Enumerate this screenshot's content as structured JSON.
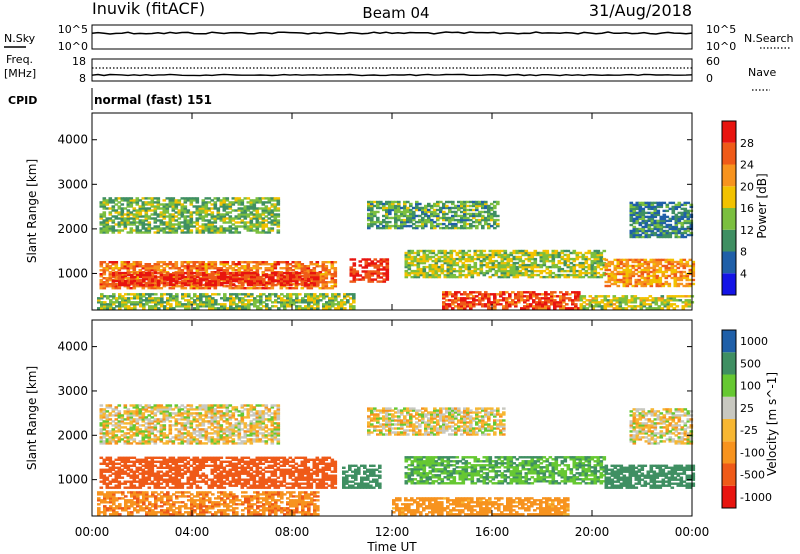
{
  "header": {
    "station": "Inuvik (fitACF)",
    "beam": "Beam 04",
    "date": "31/Aug/2018"
  },
  "top_panels": {
    "nsky_label": "N.Sky",
    "nsky_ticks": [
      "10^5",
      "10^0"
    ],
    "nsearch_label": "N.Search",
    "nsearch_ticks": [
      "10^5",
      "10^0"
    ],
    "freq_label_1": "Freq.",
    "freq_label_2": "[MHz]",
    "freq_ticks": [
      "18",
      "8"
    ],
    "nave_label": "Nave",
    "nave_ticks": [
      "60",
      "0"
    ],
    "cpid_label": "CPID",
    "cpid_text": "normal (fast) 151"
  },
  "colors": {
    "power_scale": [
      "#1414e6",
      "#1f5fa8",
      "#3f8f62",
      "#7bbf3f",
      "#f2c200",
      "#f7931e",
      "#ef5a18",
      "#e8140f"
    ],
    "velocity_scale": [
      "#e8140f",
      "#ef5a18",
      "#f7931e",
      "#f7b733",
      "#c8c8c0",
      "#66c832",
      "#3f8f62",
      "#1f5fa8"
    ]
  },
  "chart_data": [
    {
      "type": "heatmap",
      "name": "power",
      "ylabel": "Slant Range [km]",
      "yticks": [
        1000,
        2000,
        3000,
        4000
      ],
      "ylim": [
        180,
        4600
      ],
      "xlim_hours": [
        0,
        24
      ],
      "colorbar_label": "Power [dB]",
      "colorbar_ticks": [
        4,
        8,
        12,
        16,
        20,
        24,
        28
      ],
      "colorbar_range": [
        0,
        32
      ],
      "regions": [
        {
          "t": [
            0.3,
            9.7
          ],
          "r": [
            650,
            1250
          ],
          "v": 24
        },
        {
          "t": [
            0.8,
            9.0
          ],
          "r": [
            720,
            1000
          ],
          "v": 29
        },
        {
          "t": [
            0.3,
            7.5
          ],
          "r": [
            1900,
            2700
          ],
          "v": 13
        },
        {
          "t": [
            0.2,
            10.5
          ],
          "r": [
            200,
            550
          ],
          "v": 14
        },
        {
          "t": [
            10.3,
            11.8
          ],
          "r": [
            800,
            1300
          ],
          "v": 29
        },
        {
          "t": [
            11.0,
            16.2
          ],
          "r": [
            2000,
            2600
          ],
          "v": 12
        },
        {
          "t": [
            12.5,
            20.5
          ],
          "r": [
            900,
            1500
          ],
          "v": 15
        },
        {
          "t": [
            14.0,
            19.5
          ],
          "r": [
            200,
            600
          ],
          "v": 27
        },
        {
          "t": [
            20.5,
            24.0
          ],
          "r": [
            700,
            1300
          ],
          "v": 22
        },
        {
          "t": [
            21.5,
            24.0
          ],
          "r": [
            1800,
            2600
          ],
          "v": 9
        },
        {
          "t": [
            19.5,
            24.0
          ],
          "r": [
            200,
            500
          ],
          "v": 16
        }
      ]
    },
    {
      "type": "heatmap",
      "name": "velocity",
      "ylabel": "Slant Range [km]",
      "yticks": [
        1000,
        2000,
        3000,
        4000
      ],
      "ylim": [
        180,
        4600
      ],
      "xlim_hours": [
        0,
        24
      ],
      "colorbar_label": "Velocity [m s^-1]",
      "colorbar_ticks": [
        "-1000",
        "-500",
        "-100",
        "-25",
        "25",
        "100",
        "500",
        "1000"
      ],
      "regions": [
        {
          "t": [
            0.3,
            9.7
          ],
          "r": [
            800,
            1500
          ],
          "v": -300
        },
        {
          "t": [
            0.3,
            7.5
          ],
          "r": [
            1800,
            2700
          ],
          "v": 0
        },
        {
          "t": [
            0.2,
            9.0
          ],
          "r": [
            200,
            700
          ],
          "v": -80
        },
        {
          "t": [
            10.0,
            11.5
          ],
          "r": [
            800,
            1300
          ],
          "v": 200
        },
        {
          "t": [
            11.0,
            16.5
          ],
          "r": [
            2000,
            2600
          ],
          "v": 0
        },
        {
          "t": [
            12.5,
            20.5
          ],
          "r": [
            900,
            1500
          ],
          "v": 90
        },
        {
          "t": [
            12.0,
            19.0
          ],
          "r": [
            200,
            600
          ],
          "v": -60
        },
        {
          "t": [
            20.5,
            24.0
          ],
          "r": [
            800,
            1300
          ],
          "v": 150
        },
        {
          "t": [
            21.5,
            24.0
          ],
          "r": [
            1800,
            2600
          ],
          "v": 0
        }
      ]
    }
  ],
  "xaxis": {
    "ticks": [
      "00:00",
      "04:00",
      "08:00",
      "12:00",
      "16:00",
      "20:00",
      "00:00"
    ],
    "label": "Time UT"
  }
}
